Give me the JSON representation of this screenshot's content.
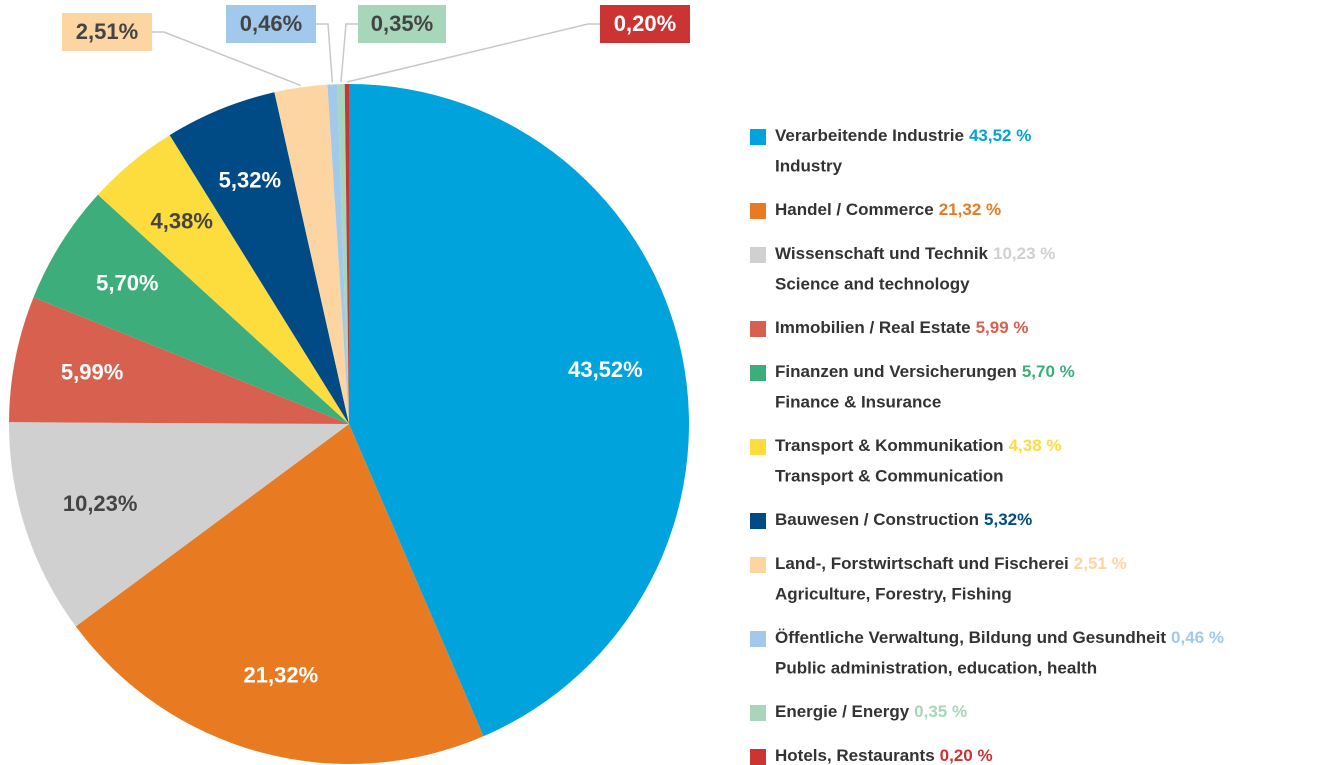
{
  "chart_data": {
    "type": "pie",
    "categories": [
      "Verarbeitende Industrie",
      "Handel / Commerce",
      "Wissenschaft und Technik",
      "Immobilien / Real Estate",
      "Finanzen und Versicherungen",
      "Transport & Kommunikation",
      "Bauwesen / Construction",
      "Land-, Forstwirtschaft und Fischerei",
      "Öffentliche Verwaltung, Bildung und Gesundheit",
      "Energie / Energy",
      "Hotels, Restaurants"
    ],
    "categories_en": [
      "Industry",
      null,
      "Science and technology",
      null,
      "Finance & Insurance",
      "Transport & Communication",
      null,
      "Agriculture, Forestry, Fishing",
      "Public administration, education, health",
      null,
      null
    ],
    "values": [
      43.52,
      21.32,
      10.23,
      5.99,
      5.7,
      4.38,
      5.32,
      2.51,
      0.46,
      0.35,
      0.2
    ],
    "value_labels": [
      "43,52%",
      "21,32%",
      "10,23%",
      "5,99%",
      "5,70%",
      "4,38%",
      "5,32%",
      "2,51%",
      "0,46%",
      "0,35%",
      "0,20%"
    ],
    "legend_value_labels": [
      "43,52 %",
      "21,32 %",
      "10,23 %",
      "5,99 %",
      "5,70 %",
      "4,38 %",
      "5,32%",
      "2,51 %",
      "0,46 %",
      "0,35 %",
      "0,20 %"
    ],
    "colors": [
      "#00a3dc",
      "#e87a22",
      "#d0d0d0",
      "#d8604f",
      "#3dae7b",
      "#fddd3d",
      "#004a86",
      "#fcd5a2",
      "#a2c9ec",
      "#a8d6bb",
      "#cc3333"
    ],
    "legend": "right"
  }
}
